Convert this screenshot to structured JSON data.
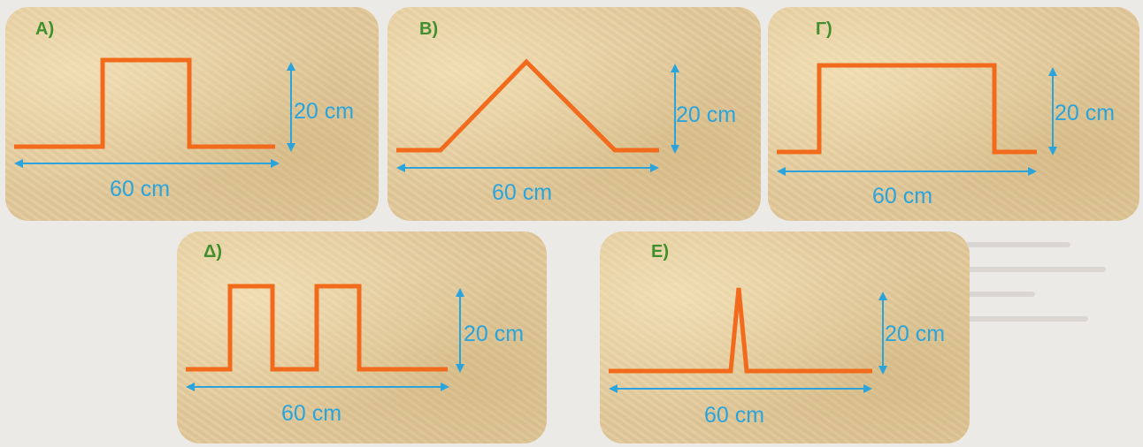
{
  "panels": [
    {
      "id": "a",
      "label": "A)",
      "height_label": "20 cm",
      "width_label": "60 cm",
      "shape": "single-wide-pulse"
    },
    {
      "id": "b",
      "label": "B)",
      "height_label": "20 cm",
      "width_label": "60 cm",
      "shape": "triangle"
    },
    {
      "id": "g",
      "label": "Γ)",
      "height_label": "20 cm",
      "width_label": "60 cm",
      "shape": "long-pulse"
    },
    {
      "id": "d",
      "label": "Δ)",
      "height_label": "20 cm",
      "width_label": "60 cm",
      "shape": "double-pulse"
    },
    {
      "id": "e",
      "label": "E)",
      "height_label": "20 cm",
      "width_label": "60 cm",
      "shape": "spike"
    }
  ],
  "colors": {
    "wave": "#f26b1d",
    "arrow": "#2ba4dc",
    "label": "#3f8f2c",
    "panel": "#e2c99a"
  }
}
